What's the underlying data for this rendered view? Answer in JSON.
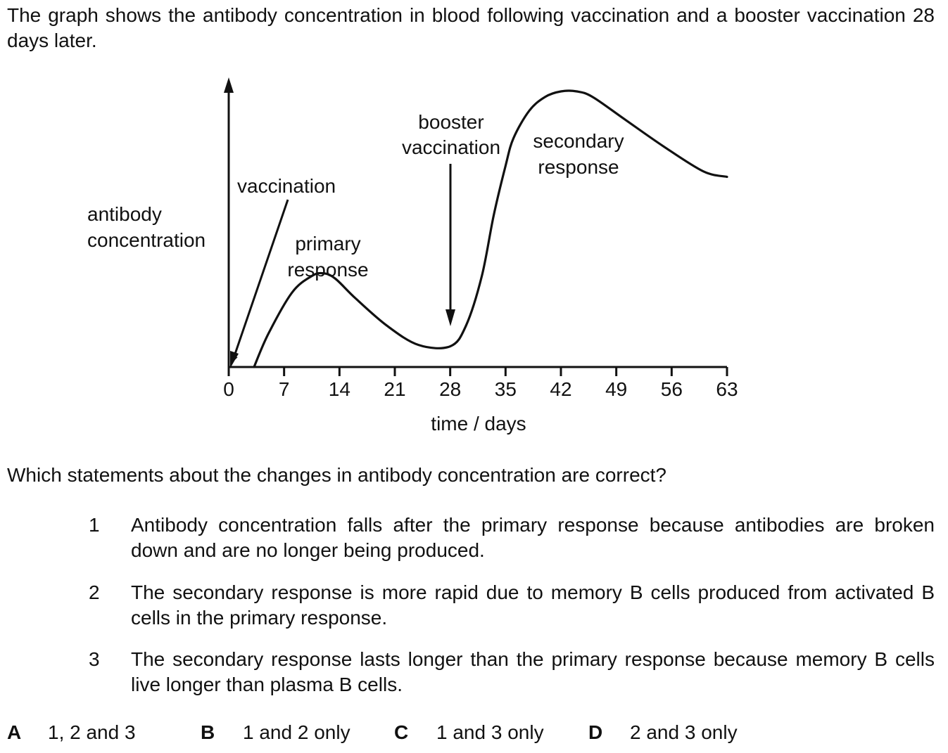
{
  "intro": "The graph shows the antibody concentration in blood following vaccination and a booster vaccination 28 days later.",
  "chart_data": {
    "type": "line",
    "xlabel": "time / days",
    "ylabel": "antibody concentration",
    "xticks": [
      0,
      7,
      14,
      21,
      28,
      35,
      42,
      49,
      56,
      63
    ],
    "xlim": [
      0,
      63
    ],
    "y_axis_values_shown": false,
    "annotations": [
      {
        "text": "vaccination",
        "points_to_day": 0
      },
      {
        "text": "booster vaccination",
        "points_to_day": 28
      },
      {
        "text": "primary response"
      },
      {
        "text": "secondary response"
      }
    ],
    "series": [
      {
        "x": [
          3.2,
          5,
          8,
          10.5,
          12,
          13.5,
          16,
          20,
          24,
          28,
          30,
          32,
          33.5,
          35,
          36,
          38,
          40,
          42,
          44,
          46,
          50,
          55,
          60,
          63
        ],
        "y": [
          0,
          0.12,
          0.27,
          0.33,
          0.34,
          0.32,
          0.25,
          0.15,
          0.08,
          0.075,
          0.15,
          0.33,
          0.55,
          0.73,
          0.83,
          0.93,
          0.98,
          1.0,
          1.0,
          0.98,
          0.9,
          0.8,
          0.71,
          0.69
        ]
      }
    ]
  },
  "question": "Which statements about the changes in antibody concentration are correct?",
  "statements": [
    {
      "num": "1",
      "text": "Antibody concentration falls after the primary response because antibodies are broken down and are no longer being produced."
    },
    {
      "num": "2",
      "text": "The secondary response is more rapid due to memory B cells produced from activated B cells in the primary response."
    },
    {
      "num": "3",
      "text": "The secondary response lasts longer than the primary response because memory B cells live longer than plasma B cells."
    }
  ],
  "options": [
    {
      "letter": "A",
      "text": "1, 2 and 3"
    },
    {
      "letter": "B",
      "text": "1 and 2 only"
    },
    {
      "letter": "C",
      "text": "1 and 3 only"
    },
    {
      "letter": "D",
      "text": "2 and 3 only"
    }
  ]
}
